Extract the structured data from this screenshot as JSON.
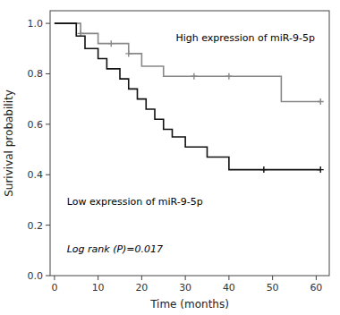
{
  "chart_data": {
    "type": "step",
    "xlabel": "Time (months)",
    "ylabel": "Surivival probability",
    "xlim": [
      -1,
      63
    ],
    "ylim": [
      0.0,
      1.05
    ],
    "xticks": [
      0,
      10,
      20,
      30,
      40,
      50,
      60
    ],
    "yticks": [
      0.0,
      0.2,
      0.4,
      0.6,
      0.8,
      1.0
    ],
    "grid": false,
    "annotation": "Log rank (P)=0.017",
    "series": [
      {
        "name": "High expression of miR-9-5p",
        "color": "#888888",
        "x": [
          0,
          4,
          6,
          10,
          13,
          15,
          17,
          20,
          22,
          25,
          30,
          32,
          35,
          40,
          50,
          52,
          61
        ],
        "values": [
          1.0,
          1.0,
          0.96,
          0.92,
          0.92,
          0.92,
          0.88,
          0.83,
          0.83,
          0.79,
          0.79,
          0.79,
          0.79,
          0.79,
          0.79,
          0.69,
          0.69
        ],
        "censor_x": [
          6,
          13,
          17,
          32,
          40,
          61
        ],
        "censor_values": [
          0.96,
          0.92,
          0.88,
          0.79,
          0.79,
          0.69
        ]
      },
      {
        "name": "Low expression of miR-9-5p",
        "color": "#111111",
        "x": [
          0,
          3,
          5,
          7,
          10,
          12,
          15,
          17,
          19,
          21,
          23,
          25,
          27,
          30,
          35,
          38,
          40,
          48,
          50,
          61
        ],
        "values": [
          1.0,
          1.0,
          0.95,
          0.9,
          0.86,
          0.82,
          0.78,
          0.74,
          0.7,
          0.66,
          0.62,
          0.58,
          0.55,
          0.51,
          0.47,
          0.47,
          0.42,
          0.42,
          0.42,
          0.42
        ],
        "censor_x": [
          48,
          61
        ],
        "censor_values": [
          0.42,
          0.42
        ]
      }
    ]
  }
}
